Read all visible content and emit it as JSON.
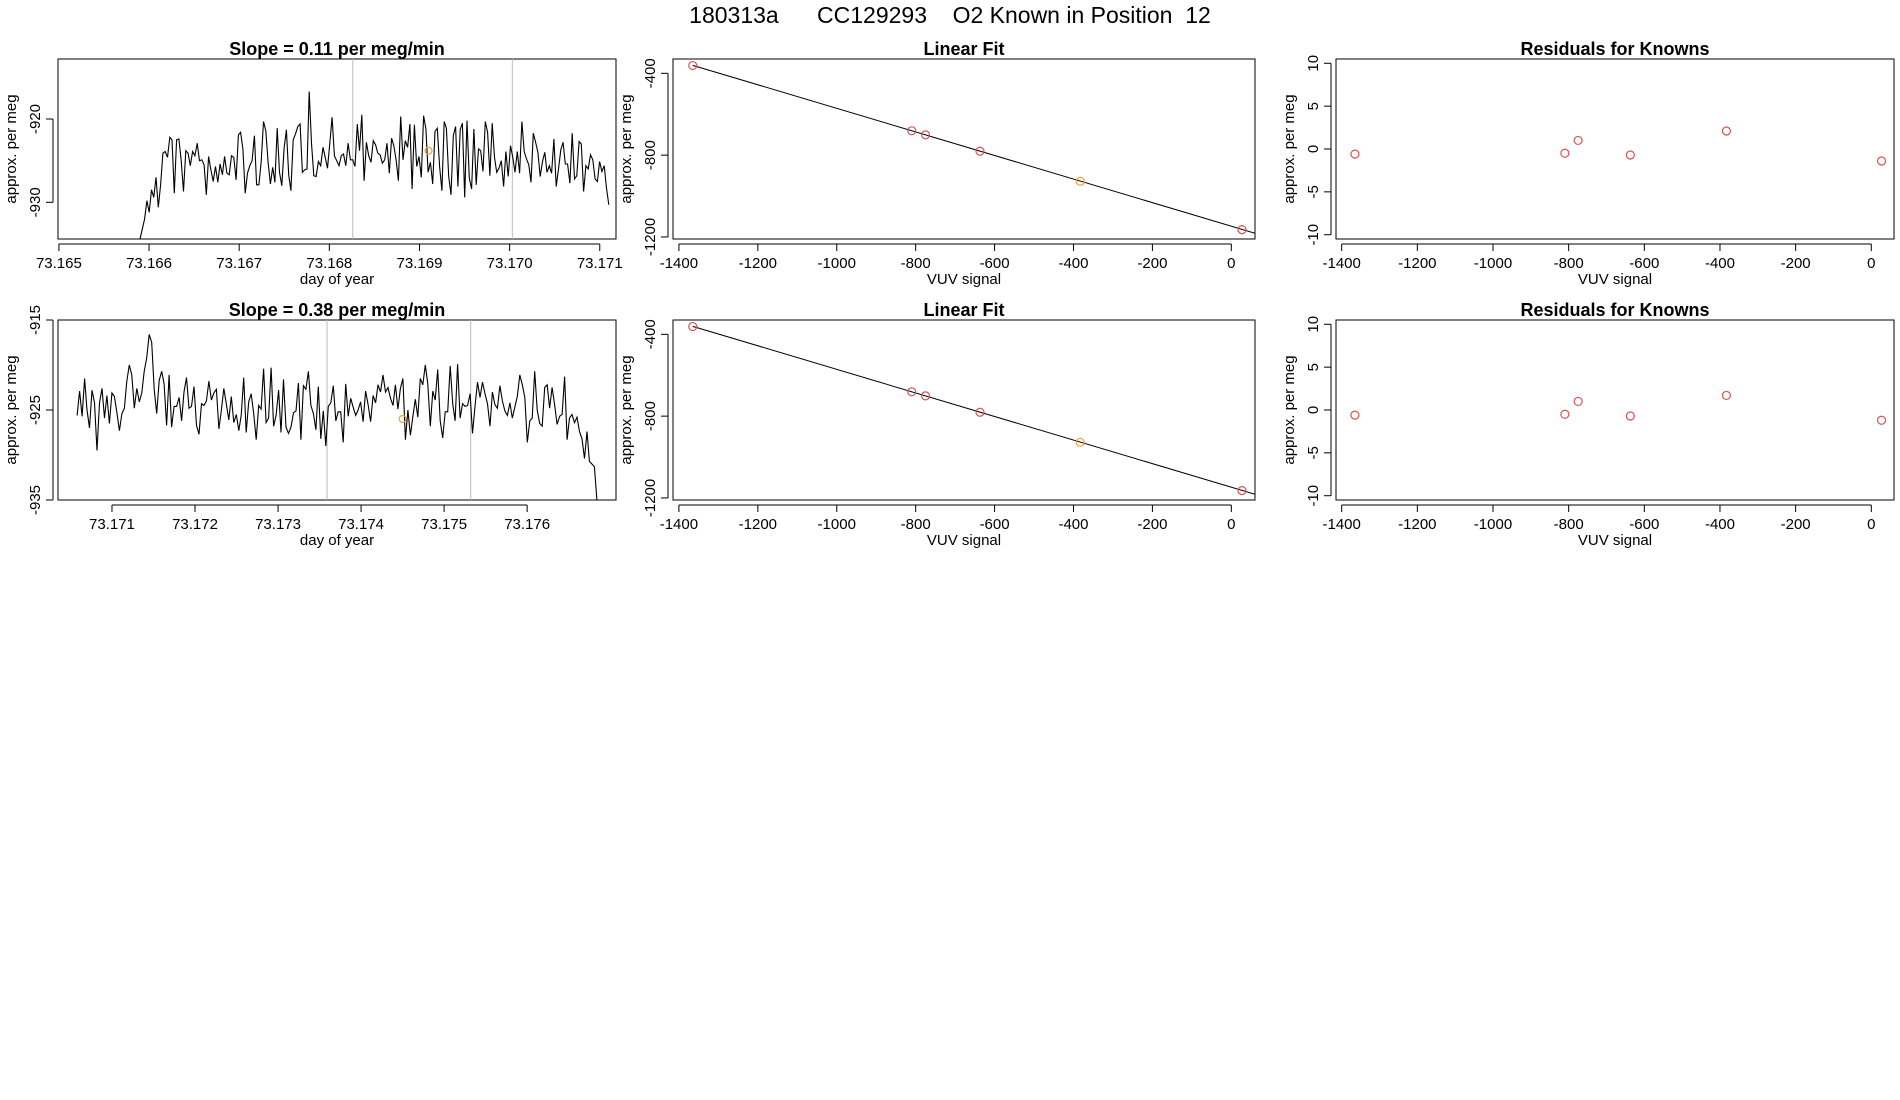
{
  "title": "180313a      CC129293    O2 Known in Position  12",
  "colors": {
    "line": "#000000",
    "point_red": "#d9534f",
    "point_orange": "#f0a030",
    "marker_line": "#bbbbbb",
    "fit_line": "#000000"
  },
  "chart_data": [
    {
      "id": "ts1",
      "type": "line",
      "title": "Slope =  0.11  per meg/min",
      "xlabel": "day of year",
      "ylabel": "approx. per meg",
      "xlim": [
        73.16499,
        73.17118
      ],
      "ylim": [
        -934.4,
        -912.8
      ],
      "xticks": [
        73.165,
        73.166,
        73.167,
        73.168,
        73.169,
        73.17,
        73.171
      ],
      "xtick_labels": [
        "73.165",
        "73.166",
        "73.167",
        "73.168",
        "73.169",
        "73.170",
        "73.171"
      ],
      "yticks": [
        -920,
        -930
      ],
      "ytick_labels": [
        "-920",
        "-930"
      ],
      "x_start": 73.1659,
      "x_end": 73.1711,
      "y_first": -934.4,
      "y_last": -930.3,
      "y": [
        -933.2,
        -932.0,
        -929.8,
        -931.2,
        -928.5,
        -929.4,
        -927.0,
        -930.6,
        -927.9,
        -924.1,
        -923.9,
        -924.6,
        -922.2,
        -922.5,
        -928.9,
        -922.5,
        -922.4,
        -925.0,
        -928.7,
        -923.8,
        -924.1,
        -925.6,
        -923.9,
        -924.4,
        -922.9,
        -925.0,
        -924.9,
        -925.5,
        -929.1,
        -924.5,
        -926.1,
        -927.5,
        -925.7,
        -927.6,
        -925.4,
        -926.7,
        -924.5,
        -926.5,
        -926.7,
        -924.4,
        -924.6,
        -927.3,
        -921.9,
        -921.6,
        -923.6,
        -928.9,
        -926.5,
        -925.6,
        -925.0,
        -922.0,
        -927.9,
        -927.9,
        -925.1,
        -920.3,
        -921.4,
        -925.2,
        -927.8,
        -925.8,
        -927.6,
        -921.1,
        -926.4,
        -928.0,
        -923.5,
        -921.3,
        -926.7,
        -928.6,
        -922.5,
        -921.8,
        -920.9,
        -920.6,
        -926.4,
        -926.1,
        -926.0,
        -916.7,
        -922.9,
        -926.8,
        -926.9,
        -925.1,
        -925.6,
        -923.4,
        -924.6,
        -925.9,
        -922.9,
        -919.8,
        -924.4,
        -925.0,
        -925.6,
        -924.4,
        -924.2,
        -925.6,
        -922.9,
        -924.9,
        -924.9,
        -925.7,
        -920.6,
        -923.8,
        -919.5,
        -927.4,
        -922.8,
        -924.4,
        -925.2,
        -922.6,
        -923.1,
        -924.1,
        -924.3,
        -925.3,
        -924.9,
        -922.9,
        -926.5,
        -922.3,
        -923.2,
        -924.9,
        -927.4,
        -919.7,
        -924.9,
        -922.6,
        -923.4,
        -920.6,
        -928.4,
        -920.7,
        -925.7,
        -924.5,
        -927.0,
        -919.6,
        -921.2,
        -926.4,
        -925.2,
        -927.8,
        -921.5,
        -921.1,
        -925.7,
        -928.6,
        -920.3,
        -921.1,
        -926.9,
        -929.1,
        -922.0,
        -920.9,
        -928.1,
        -921.3,
        -920.5,
        -929.4,
        -920.2,
        -927.1,
        -928.4,
        -921.2,
        -927.9,
        -923.6,
        -923.8,
        -926.3,
        -920.3,
        -921.6,
        -926.8,
        -920.5,
        -924.6,
        -926.4,
        -925.9,
        -925.0,
        -928.1,
        -923.9,
        -926.9,
        -923.2,
        -924.6,
        -926.4,
        -923.9,
        -926.5,
        -920.3,
        -923.9,
        -924.8,
        -925.5,
        -927.6,
        -921.7,
        -922.8,
        -924.0,
        -926.9,
        -925.1,
        -924.0,
        -926.4,
        -925.6,
        -926.5,
        -922.4,
        -928.1,
        -926.0,
        -923.7,
        -922.8,
        -925.4,
        -925.4,
        -927.7,
        -921.7,
        -927.2,
        -926.8,
        -922.7,
        -923.0,
        -928.7,
        -925.6,
        -926.0,
        -924.3,
        -924.9,
        -927.2,
        -927.5,
        -925.1,
        -926.3,
        -925.6,
        -928.3
      ],
      "vlines": [
        73.16826,
        73.17003
      ],
      "marker_points": [
        {
          "x": 73.1691,
          "y": -923.8
        }
      ]
    },
    {
      "id": "fit1",
      "type": "scatter",
      "title": "Linear Fit",
      "xlabel": "VUV signal",
      "ylabel": "approx. per meg",
      "xlim": [
        -1415,
        60
      ],
      "ylim": [
        -1210,
        -330
      ],
      "xticks": [
        -1400,
        -1200,
        -1000,
        -800,
        -600,
        -400,
        -200,
        0
      ],
      "xtick_labels": [
        "-1400",
        "-1200",
        "-1000",
        "-800",
        "-600",
        "-400",
        "-200",
        "0"
      ],
      "yticks": [
        -400,
        -800,
        -1200
      ],
      "ytick_labels": [
        "-400",
        "-800",
        "-1200"
      ],
      "points": [
        {
          "x": -1365,
          "y": -362,
          "color": "red"
        },
        {
          "x": -810,
          "y": -681,
          "color": "red"
        },
        {
          "x": -775,
          "y": -701,
          "color": "red"
        },
        {
          "x": -637,
          "y": -781,
          "color": "red"
        },
        {
          "x": -383,
          "y": -928,
          "color": "orange"
        },
        {
          "x": 27,
          "y": -1164,
          "color": "red"
        }
      ],
      "fit_line": {
        "x": [
          -1365,
          60
        ],
        "y": [
          -361,
          -1182
        ]
      }
    },
    {
      "id": "res1",
      "type": "scatter",
      "title": "Residuals for Knowns",
      "xlabel": "VUV signal",
      "ylabel": "approx. per meg",
      "xlim": [
        -1415,
        60
      ],
      "ylim": [
        -10.5,
        10.5
      ],
      "xticks": [
        -1400,
        -1200,
        -1000,
        -800,
        -600,
        -400,
        -200,
        0
      ],
      "xtick_labels": [
        "-1400",
        "-1200",
        "-1000",
        "-800",
        "-600",
        "-400",
        "-200",
        "0"
      ],
      "yticks": [
        10,
        5,
        0,
        -5,
        -10
      ],
      "ytick_labels": [
        "10",
        "5",
        "0",
        "-5",
        "-10"
      ],
      "points": [
        {
          "x": -1365,
          "y": -0.6,
          "color": "red"
        },
        {
          "x": -810,
          "y": -0.5,
          "color": "red"
        },
        {
          "x": -775,
          "y": 1.0,
          "color": "red"
        },
        {
          "x": -637,
          "y": -0.7,
          "color": "red"
        },
        {
          "x": -383,
          "y": 2.1,
          "color": "red"
        },
        {
          "x": 27,
          "y": -1.4,
          "color": "red"
        }
      ]
    },
    {
      "id": "ts2",
      "type": "line",
      "title": "Slope =  0.38  per meg/min",
      "xlabel": "day of year",
      "ylabel": "approx. per meg",
      "xlim": [
        73.17035,
        73.17707
      ],
      "ylim": [
        -935.0,
        -915.0
      ],
      "xticks": [
        73.171,
        73.172,
        73.173,
        73.174,
        73.175,
        73.176
      ],
      "xtick_labels": [
        "73.171",
        "73.172",
        "73.173",
        "73.174",
        "73.175",
        "73.176"
      ],
      "yticks": [
        -915,
        -925,
        -935
      ],
      "ytick_labels": [
        "-915",
        "-925",
        "-935"
      ],
      "x_start": 73.17058,
      "x_end": 73.17684,
      "y_first": -925.6,
      "y_last": -935.0,
      "y": [
        -922.9,
        -925.7,
        -921.5,
        -925.0,
        -927.0,
        -922.8,
        -924.2,
        -929.5,
        -924.2,
        -922.6,
        -925.9,
        -923.4,
        -926.5,
        -923.1,
        -923.5,
        -925.3,
        -927.3,
        -925.4,
        -924.8,
        -921.8,
        -920.0,
        -921.1,
        -924.8,
        -922.6,
        -924.1,
        -923.1,
        -920.7,
        -919.2,
        -916.6,
        -917.5,
        -922.7,
        -925.4,
        -921.7,
        -920.7,
        -922.1,
        -926.7,
        -921.1,
        -926.9,
        -924.6,
        -924.6,
        -923.6,
        -926.2,
        -923.0,
        -921.4,
        -924.8,
        -924.6,
        -922.4,
        -926.7,
        -927.7,
        -924.3,
        -924.5,
        -924.0,
        -921.8,
        -923.9,
        -923.1,
        -922.7,
        -927.1,
        -925.1,
        -922.6,
        -924.3,
        -926.1,
        -923.5,
        -926.4,
        -925.5,
        -927.3,
        -925.6,
        -921.4,
        -927.5,
        -924.1,
        -923.2,
        -925.4,
        -928.3,
        -924.5,
        -924.9,
        -920.4,
        -926.4,
        -925.9,
        -920.3,
        -926.8,
        -925.6,
        -922.8,
        -927.5,
        -921.6,
        -926.9,
        -927.6,
        -926.9,
        -925.3,
        -925.1,
        -922.0,
        -928.3,
        -922.3,
        -922.7,
        -920.7,
        -924.5,
        -925.4,
        -927.2,
        -922.4,
        -928.2,
        -925.1,
        -929.0,
        -924.6,
        -924.2,
        -922.3,
        -926.2,
        -925.2,
        -925.2,
        -928.6,
        -922.1,
        -925.7,
        -923.7,
        -924.7,
        -925.6,
        -925.0,
        -924.1,
        -926.3,
        -922.9,
        -924.4,
        -926.3,
        -923.4,
        -924.2,
        -922.2,
        -923.0,
        -921.1,
        -923.0,
        -922.5,
        -923.7,
        -924.5,
        -922.2,
        -924.9,
        -922.6,
        -921.5,
        -928.3,
        -925.0,
        -927.8,
        -925.7,
        -923.8,
        -925.8,
        -921.5,
        -922.2,
        -920.0,
        -922.1,
        -926.8,
        -922.9,
        -923.9,
        -920.5,
        -926.2,
        -928.1,
        -925.2,
        -925.2,
        -920.1,
        -924.3,
        -926.2,
        -919.9,
        -925.9,
        -924.3,
        -924.6,
        -924.5,
        -923.2,
        -927.6,
        -924.6,
        -921.9,
        -923.6,
        -921.9,
        -923.2,
        -924.3,
        -926.8,
        -923.0,
        -924.4,
        -924.8,
        -922.3,
        -924.0,
        -925.1,
        -925.6,
        -924.2,
        -925.9,
        -924.7,
        -923.5,
        -921.1,
        -922.2,
        -923.6,
        -928.6,
        -926.2,
        -925.9,
        -920.7,
        -925.0,
        -926.5,
        -926.8,
        -922.5,
        -922.2,
        -924.8,
        -922.5,
        -924.4,
        -926.6,
        -925.7,
        -925.5,
        -921.3,
        -928.3,
        -925.9,
        -925.5,
        -926.4,
        -925.8,
        -927.4,
        -928.2,
        -930.4,
        -927.4,
        -930.7,
        -931.0,
        -931.3
      ],
      "vlines": [
        73.17359,
        73.17532
      ],
      "marker_points": [
        {
          "x": 73.1745,
          "y": -926.0
        }
      ]
    },
    {
      "id": "fit2",
      "type": "scatter",
      "title": "Linear Fit",
      "xlabel": "VUV signal",
      "ylabel": "approx. per meg",
      "xlim": [
        -1415,
        60
      ],
      "ylim": [
        -1210,
        -330
      ],
      "xticks": [
        -1400,
        -1200,
        -1000,
        -800,
        -600,
        -400,
        -200,
        0
      ],
      "xtick_labels": [
        "-1400",
        "-1200",
        "-1000",
        "-800",
        "-600",
        "-400",
        "-200",
        "0"
      ],
      "yticks": [
        -400,
        -800,
        -1200
      ],
      "ytick_labels": [
        "-400",
        "-800",
        "-1200"
      ],
      "points": [
        {
          "x": -1365,
          "y": -362,
          "color": "red"
        },
        {
          "x": -810,
          "y": -681,
          "color": "red"
        },
        {
          "x": -775,
          "y": -701,
          "color": "red"
        },
        {
          "x": -637,
          "y": -781,
          "color": "red"
        },
        {
          "x": -383,
          "y": -928,
          "color": "orange"
        },
        {
          "x": 27,
          "y": -1164,
          "color": "red"
        }
      ],
      "fit_line": {
        "x": [
          -1365,
          60
        ],
        "y": [
          -361,
          -1182
        ]
      }
    },
    {
      "id": "res2",
      "type": "scatter",
      "title": "Residuals for Knowns",
      "xlabel": "VUV signal",
      "ylabel": "approx. per meg",
      "xlim": [
        -1415,
        60
      ],
      "ylim": [
        -10.5,
        10.5
      ],
      "xticks": [
        -1400,
        -1200,
        -1000,
        -800,
        -600,
        -400,
        -200,
        0
      ],
      "xtick_labels": [
        "-1400",
        "-1200",
        "-1000",
        "-800",
        "-600",
        "-400",
        "-200",
        "0"
      ],
      "yticks": [
        10,
        5,
        0,
        -5,
        -10
      ],
      "ytick_labels": [
        "10",
        "5",
        "0",
        "-5",
        "-10"
      ],
      "points": [
        {
          "x": -1365,
          "y": -0.6,
          "color": "red"
        },
        {
          "x": -810,
          "y": -0.5,
          "color": "red"
        },
        {
          "x": -775,
          "y": 1.0,
          "color": "red"
        },
        {
          "x": -637,
          "y": -0.7,
          "color": "red"
        },
        {
          "x": -383,
          "y": 1.7,
          "color": "red"
        },
        {
          "x": 27,
          "y": -1.2,
          "color": "red"
        }
      ]
    }
  ]
}
